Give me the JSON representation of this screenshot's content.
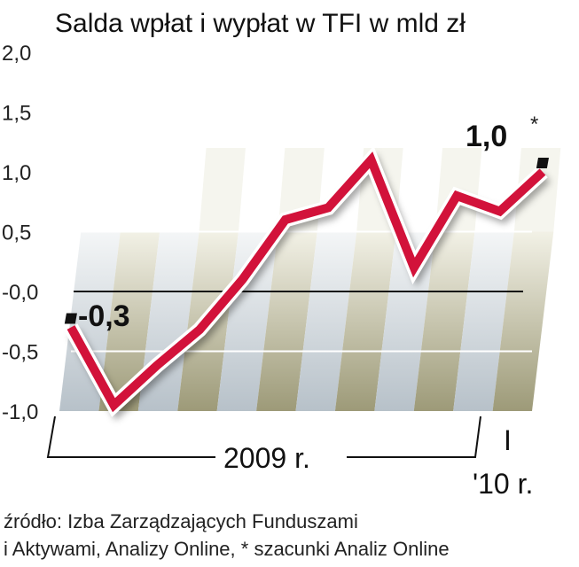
{
  "chart_data": {
    "type": "line",
    "title": "Salda wpłat i wypłat w TFI w mld zł",
    "ylim": [
      -1.0,
      2.0
    ],
    "yticks": [
      "2,0",
      "1,5",
      "1,0",
      "0,5",
      "-0,0",
      "-0,5",
      "-1,0"
    ],
    "ytick_values": [
      2.0,
      1.5,
      1.0,
      0.5,
      0.0,
      -0.5,
      -1.0
    ],
    "x_labels": {
      "year": "2009 r.",
      "next_month": "I",
      "next_year": "'10 r."
    },
    "series": [
      {
        "values": [
          -0.3,
          -0.95,
          -0.62,
          -0.32,
          0.1,
          0.6,
          0.7,
          1.1,
          0.2,
          0.8,
          0.67,
          1.0
        ],
        "color": "#d2123a"
      }
    ],
    "annotations": {
      "start": "-0,3",
      "end": "1,0",
      "end_mark": "*"
    },
    "grid": true,
    "source_line1": "źródło: Izba Zarządzających Funduszami",
    "source_line2": "i Aktywami, Analizy Online, * szacunki Analiz Online"
  }
}
